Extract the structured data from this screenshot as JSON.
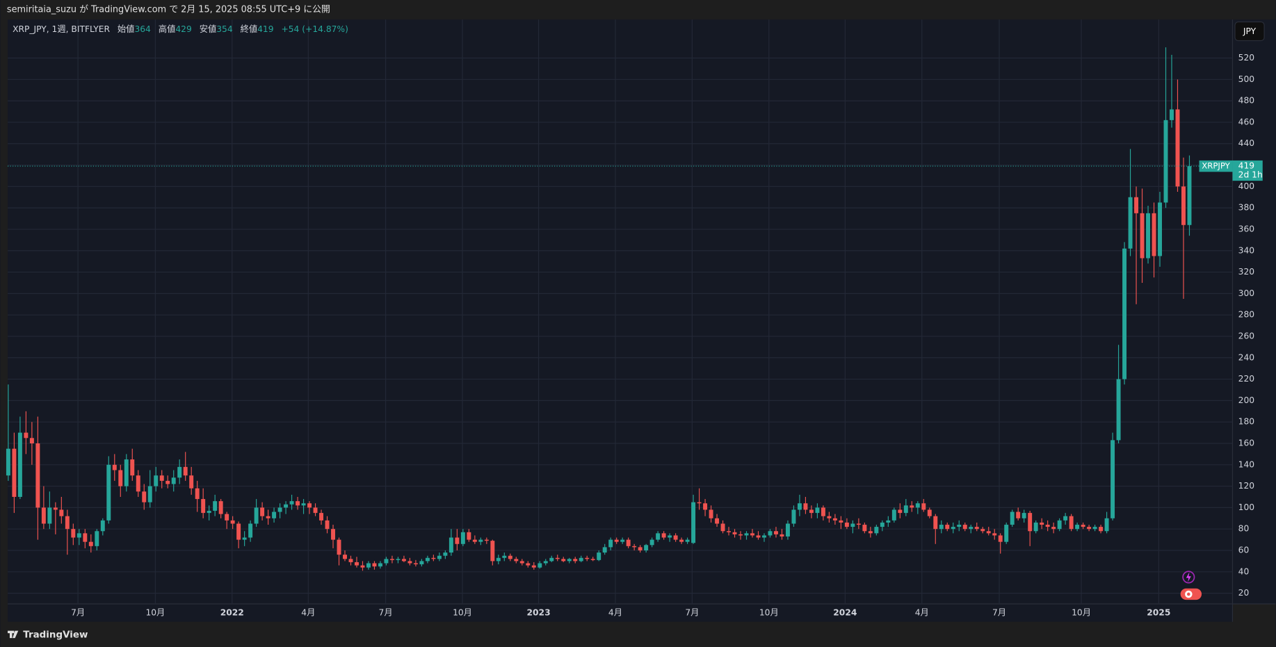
{
  "publish_line": "semiritaia_suzu が TradingView.com で 2月 15, 2025 08:55 UTC+9 に公開",
  "chart_data": {
    "type": "candlestick",
    "symbol": "XRP_JPY, 1週, BITFLYER",
    "ohlc_labels": [
      "始値",
      "高値",
      "安値",
      "終値"
    ],
    "change": "+54 (+14.87%)",
    "currency": "JPY",
    "ticker": "XRPJPY",
    "countdown": "2d 1h",
    "up_color": "#26a69a",
    "down_color": "#ef5350",
    "grid": true,
    "last_price_line": true,
    "xlim": [
      -0.1,
      207.3
    ],
    "ylim": [
      10,
      556
    ],
    "yticks": [
      20,
      40,
      60,
      80,
      100,
      120,
      140,
      160,
      180,
      200,
      220,
      240,
      260,
      280,
      300,
      320,
      340,
      360,
      380,
      400,
      420,
      440,
      460,
      480,
      500,
      520
    ],
    "xticks": [
      {
        "value": 11.8,
        "label": "7月"
      },
      {
        "value": 24.9,
        "label": "10月"
      },
      {
        "value": 37.9,
        "label": "2022"
      },
      {
        "value": 50.8,
        "label": "4月"
      },
      {
        "value": 63.9,
        "label": "7月"
      },
      {
        "value": 76.9,
        "label": "10月"
      },
      {
        "value": 89.8,
        "label": "2023"
      },
      {
        "value": 102.8,
        "label": "4月"
      },
      {
        "value": 115.8,
        "label": "7月"
      },
      {
        "value": 128.8,
        "label": "10月"
      },
      {
        "value": 141.7,
        "label": "2024"
      },
      {
        "value": 154.7,
        "label": "4月"
      },
      {
        "value": 167.8,
        "label": "7月"
      },
      {
        "value": 181.7,
        "label": "10月"
      },
      {
        "value": 194.8,
        "label": "2025"
      }
    ],
    "candles": [
      [
        130,
        215,
        125,
        155
      ],
      [
        155,
        170,
        95,
        110
      ],
      [
        110,
        185,
        108,
        170
      ],
      [
        170,
        190,
        150,
        165
      ],
      [
        165,
        180,
        140,
        160
      ],
      [
        160,
        185,
        70,
        100
      ],
      [
        100,
        120,
        80,
        85
      ],
      [
        85,
        115,
        80,
        100
      ],
      [
        100,
        105,
        75,
        98
      ],
      [
        98,
        110,
        85,
        92
      ],
      [
        92,
        98,
        56,
        80
      ],
      [
        80,
        85,
        65,
        72
      ],
      [
        72,
        80,
        65,
        76
      ],
      [
        76,
        80,
        62,
        68
      ],
      [
        68,
        75,
        58,
        64
      ],
      [
        64,
        80,
        60,
        78
      ],
      [
        78,
        90,
        74,
        88
      ],
      [
        88,
        148,
        85,
        140
      ],
      [
        140,
        150,
        125,
        135
      ],
      [
        135,
        140,
        110,
        120
      ],
      [
        120,
        150,
        115,
        145
      ],
      [
        145,
        155,
        125,
        130
      ],
      [
        130,
        135,
        110,
        115
      ],
      [
        115,
        122,
        98,
        105
      ],
      [
        105,
        135,
        100,
        120
      ],
      [
        120,
        138,
        115,
        130
      ],
      [
        130,
        135,
        118,
        125
      ],
      [
        125,
        130,
        118,
        122
      ],
      [
        122,
        135,
        115,
        128
      ],
      [
        128,
        145,
        122,
        138
      ],
      [
        138,
        152,
        125,
        130
      ],
      [
        130,
        138,
        112,
        118
      ],
      [
        118,
        125,
        96,
        108
      ],
      [
        108,
        118,
        90,
        95
      ],
      [
        95,
        102,
        88,
        97
      ],
      [
        97,
        112,
        92,
        106
      ],
      [
        106,
        108,
        90,
        94
      ],
      [
        94,
        96,
        80,
        88
      ],
      [
        88,
        92,
        80,
        85
      ],
      [
        85,
        87,
        62,
        70
      ],
      [
        70,
        78,
        64,
        72
      ],
      [
        72,
        88,
        68,
        85
      ],
      [
        85,
        108,
        82,
        100
      ],
      [
        100,
        105,
        88,
        92
      ],
      [
        92,
        98,
        84,
        90
      ],
      [
        90,
        100,
        86,
        96
      ],
      [
        96,
        104,
        90,
        100
      ],
      [
        100,
        106,
        94,
        103
      ],
      [
        103,
        112,
        98,
        106
      ],
      [
        106,
        110,
        98,
        102
      ],
      [
        102,
        108,
        94,
        104
      ],
      [
        104,
        106,
        94,
        100
      ],
      [
        100,
        104,
        92,
        95
      ],
      [
        95,
        98,
        84,
        88
      ],
      [
        88,
        92,
        76,
        80
      ],
      [
        80,
        84,
        62,
        70
      ],
      [
        70,
        72,
        46,
        56
      ],
      [
        56,
        60,
        50,
        52
      ],
      [
        52,
        55,
        46,
        49
      ],
      [
        49,
        54,
        44,
        46
      ],
      [
        46,
        50,
        41,
        44
      ],
      [
        44,
        50,
        42,
        48
      ],
      [
        48,
        50,
        42,
        45
      ],
      [
        45,
        50,
        43,
        48
      ],
      [
        48,
        54,
        46,
        52
      ],
      [
        52,
        55,
        48,
        51
      ],
      [
        51,
        54,
        48,
        52
      ],
      [
        52,
        55,
        49,
        50
      ],
      [
        50,
        53,
        46,
        48
      ],
      [
        48,
        51,
        45,
        47
      ],
      [
        47,
        52,
        45,
        50
      ],
      [
        50,
        55,
        48,
        53
      ],
      [
        53,
        56,
        50,
        52
      ],
      [
        52,
        58,
        50,
        55
      ],
      [
        55,
        60,
        52,
        58
      ],
      [
        58,
        80,
        55,
        72
      ],
      [
        72,
        80,
        60,
        66
      ],
      [
        66,
        80,
        64,
        77
      ],
      [
        77,
        80,
        68,
        70
      ],
      [
        70,
        74,
        66,
        68
      ],
      [
        68,
        72,
        65,
        70
      ],
      [
        70,
        72,
        66,
        69
      ],
      [
        69,
        70,
        46,
        50
      ],
      [
        50,
        56,
        47,
        53
      ],
      [
        53,
        58,
        50,
        55
      ],
      [
        55,
        57,
        50,
        52
      ],
      [
        52,
        54,
        48,
        50
      ],
      [
        50,
        52,
        46,
        48
      ],
      [
        48,
        50,
        44,
        46
      ],
      [
        46,
        49,
        42,
        44
      ],
      [
        44,
        50,
        43,
        48
      ],
      [
        48,
        52,
        46,
        50
      ],
      [
        50,
        55,
        49,
        53
      ],
      [
        53,
        56,
        50,
        52
      ],
      [
        52,
        54,
        49,
        50
      ],
      [
        50,
        53,
        48,
        52
      ],
      [
        52,
        54,
        48,
        50
      ],
      [
        50,
        55,
        49,
        53
      ],
      [
        53,
        55,
        50,
        52
      ],
      [
        52,
        54,
        50,
        51
      ],
      [
        51,
        60,
        50,
        58
      ],
      [
        58,
        66,
        56,
        63
      ],
      [
        63,
        72,
        60,
        70
      ],
      [
        70,
        72,
        66,
        68
      ],
      [
        68,
        72,
        66,
        70
      ],
      [
        70,
        72,
        62,
        64
      ],
      [
        64,
        66,
        60,
        63
      ],
      [
        63,
        65,
        58,
        60
      ],
      [
        60,
        66,
        58,
        65
      ],
      [
        65,
        72,
        63,
        70
      ],
      [
        70,
        78,
        68,
        76
      ],
      [
        76,
        78,
        70,
        72
      ],
      [
        72,
        76,
        68,
        74
      ],
      [
        74,
        76,
        68,
        70
      ],
      [
        70,
        72,
        66,
        68
      ],
      [
        68,
        72,
        66,
        70
      ],
      [
        67,
        112,
        66,
        105
      ],
      [
        105,
        118,
        98,
        104
      ],
      [
        104,
        108,
        92,
        98
      ],
      [
        98,
        102,
        86,
        90
      ],
      [
        90,
        94,
        82,
        85
      ],
      [
        85,
        88,
        76,
        78
      ],
      [
        78,
        82,
        74,
        77
      ],
      [
        77,
        80,
        72,
        75
      ],
      [
        75,
        78,
        70,
        74
      ],
      [
        74,
        78,
        70,
        76
      ],
      [
        76,
        80,
        72,
        74
      ],
      [
        74,
        78,
        70,
        72
      ],
      [
        72,
        76,
        68,
        74
      ],
      [
        74,
        80,
        72,
        78
      ],
      [
        78,
        82,
        72,
        75
      ],
      [
        75,
        80,
        70,
        73
      ],
      [
        73,
        88,
        70,
        85
      ],
      [
        85,
        102,
        82,
        98
      ],
      [
        98,
        112,
        92,
        104
      ],
      [
        104,
        110,
        94,
        98
      ],
      [
        98,
        102,
        90,
        95
      ],
      [
        95,
        104,
        90,
        100
      ],
      [
        100,
        102,
        88,
        92
      ],
      [
        92,
        96,
        86,
        90
      ],
      [
        90,
        94,
        84,
        88
      ],
      [
        88,
        92,
        80,
        86
      ],
      [
        86,
        90,
        80,
        82
      ],
      [
        82,
        88,
        76,
        85
      ],
      [
        85,
        90,
        80,
        84
      ],
      [
        84,
        86,
        76,
        78
      ],
      [
        78,
        82,
        72,
        76
      ],
      [
        76,
        84,
        74,
        82
      ],
      [
        82,
        88,
        78,
        86
      ],
      [
        86,
        92,
        82,
        88
      ],
      [
        88,
        100,
        86,
        98
      ],
      [
        98,
        104,
        90,
        95
      ],
      [
        95,
        108,
        92,
        102
      ],
      [
        102,
        106,
        96,
        100
      ],
      [
        100,
        106,
        94,
        104
      ],
      [
        104,
        108,
        96,
        98
      ],
      [
        98,
        100,
        90,
        92
      ],
      [
        92,
        94,
        66,
        80
      ],
      [
        80,
        88,
        76,
        84
      ],
      [
        84,
        86,
        78,
        80
      ],
      [
        80,
        86,
        76,
        82
      ],
      [
        82,
        88,
        78,
        84
      ],
      [
        84,
        86,
        78,
        80
      ],
      [
        80,
        84,
        76,
        82
      ],
      [
        82,
        86,
        78,
        80
      ],
      [
        80,
        82,
        76,
        78
      ],
      [
        78,
        82,
        74,
        76
      ],
      [
        76,
        80,
        70,
        74
      ],
      [
        74,
        76,
        57,
        68
      ],
      [
        68,
        86,
        66,
        84
      ],
      [
        84,
        98,
        82,
        96
      ],
      [
        96,
        100,
        88,
        90
      ],
      [
        90,
        98,
        86,
        95
      ],
      [
        95,
        97,
        64,
        78
      ],
      [
        78,
        88,
        76,
        86
      ],
      [
        86,
        90,
        80,
        84
      ],
      [
        84,
        88,
        78,
        82
      ],
      [
        82,
        86,
        76,
        80
      ],
      [
        80,
        90,
        78,
        88
      ],
      [
        88,
        95,
        84,
        92
      ],
      [
        92,
        94,
        78,
        80
      ],
      [
        80,
        86,
        78,
        84
      ],
      [
        84,
        86,
        80,
        82
      ],
      [
        82,
        84,
        78,
        80
      ],
      [
        80,
        84,
        78,
        82
      ],
      [
        82,
        84,
        76,
        78
      ],
      [
        78,
        96,
        76,
        90
      ],
      [
        90,
        170,
        88,
        163
      ],
      [
        163,
        252,
        160,
        220
      ],
      [
        220,
        348,
        215,
        342
      ],
      [
        342,
        435,
        335,
        390
      ],
      [
        390,
        400,
        290,
        375
      ],
      [
        375,
        398,
        310,
        333
      ],
      [
        333,
        382,
        328,
        375
      ],
      [
        375,
        385,
        315,
        335
      ],
      [
        335,
        395,
        325,
        385
      ],
      [
        385,
        530,
        380,
        462
      ],
      [
        462,
        523,
        455,
        472
      ],
      [
        472,
        500,
        395,
        400
      ],
      [
        400,
        427,
        295,
        364
      ],
      [
        364,
        429,
        354,
        419
      ]
    ]
  },
  "footer": {
    "brand": "TradingView"
  }
}
